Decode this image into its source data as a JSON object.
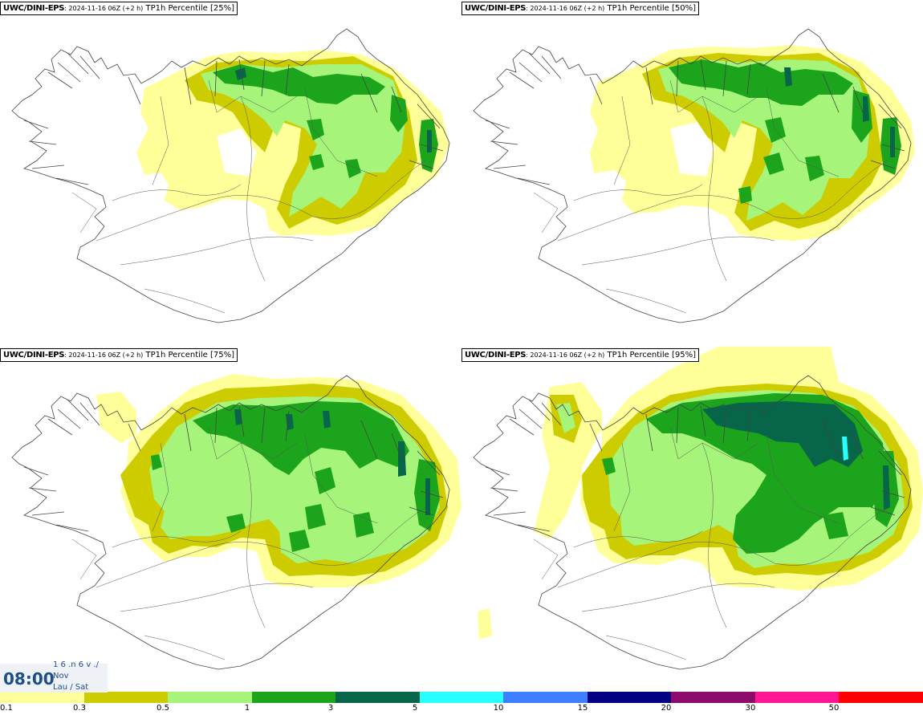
{
  "panels": [
    {
      "source": "UWC/DINI-EPS",
      "run": ": 2024-11-16 06Z (+2 h)",
      "field": "TP1h Percentile [25%]"
    },
    {
      "source": "UWC/DINI-EPS",
      "run": ": 2024-11-16 06Z (+2 h)",
      "field": "TP1h Percentile [50%]"
    },
    {
      "source": "UWC/DINI-EPS",
      "run": ": 2024-11-16 06Z (+2 h)",
      "field": "TP1h Percentile [75%]"
    },
    {
      "source": "UWC/DINI-EPS",
      "run": ": 2024-11-16 06Z (+2 h)",
      "field": "TP1h Percentile [95%]"
    }
  ],
  "valid_time": {
    "time": "08:00",
    "date_line": "1 6 .n 6 v ./",
    "month": "Nov",
    "weekday": "Lau / Sat"
  },
  "colorbar": {
    "colors": [
      "#ffff99",
      "#cccc00",
      "#a6f57a",
      "#1ca51c",
      "#07654a",
      "#28ffff",
      "#3d7fff",
      "#000080",
      "#8b0a6b",
      "#ff1493",
      "#ff0000"
    ],
    "tick_labels": [
      "0.1",
      "0.3",
      "0.5",
      "1",
      "3",
      "5",
      "10",
      "15",
      "20",
      "30",
      "50"
    ]
  },
  "fill_colors": {
    "c1": "#ffff99",
    "c2": "#cccc00",
    "c3": "#a6f57a",
    "c4": "#1ca51c",
    "c5": "#07654a",
    "c6": "#28ffff"
  }
}
